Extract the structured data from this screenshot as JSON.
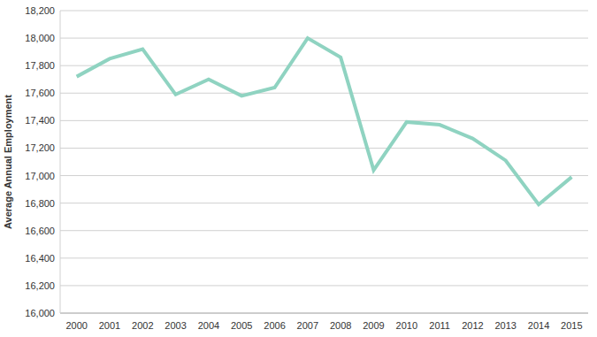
{
  "chart_data": {
    "type": "line",
    "y_label": "Average Annual Employment",
    "categories": [
      "2000",
      "2001",
      "2002",
      "2003",
      "2004",
      "2005",
      "2006",
      "2007",
      "2008",
      "2009",
      "2010",
      "2011",
      "2012",
      "2013",
      "2014",
      "2015"
    ],
    "values": [
      17720,
      17850,
      17920,
      17590,
      17700,
      17580,
      17640,
      18000,
      17860,
      17040,
      17390,
      17370,
      17270,
      17110,
      16790,
      16990
    ],
    "color": "#8fd3c1",
    "ylim": [
      16000,
      18200
    ],
    "yticks": [
      {
        "value": 16000,
        "label": "16,000"
      },
      {
        "value": 16200,
        "label": "16,200"
      },
      {
        "value": 16400,
        "label": "16,400"
      },
      {
        "value": 16600,
        "label": "16,600"
      },
      {
        "value": 16800,
        "label": "16,800"
      },
      {
        "value": 17000,
        "label": "17,000"
      },
      {
        "value": 17200,
        "label": "17,200"
      },
      {
        "value": 17400,
        "label": "17,400"
      },
      {
        "value": 17600,
        "label": "17,600"
      },
      {
        "value": 17800,
        "label": "17,800"
      },
      {
        "value": 18000,
        "label": "18,000"
      },
      {
        "value": 18200,
        "label": "18,200"
      }
    ],
    "grid": true
  }
}
